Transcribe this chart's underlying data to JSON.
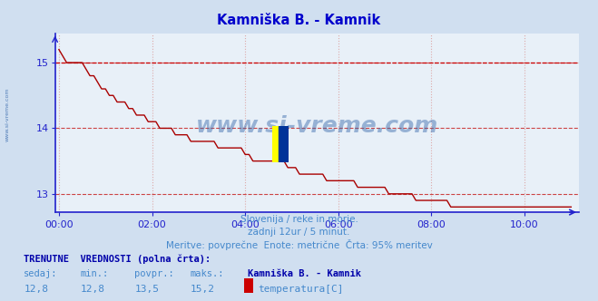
{
  "title": "Kamniška B. - Kamnik",
  "title_color": "#0000cc",
  "bg_color": "#d0dff0",
  "plot_bg_color": "#e8f0f8",
  "grid_h_color": "#cc4444",
  "grid_v_color": "#ddaaaa",
  "axis_color": "#2222cc",
  "line_color": "#aa0000",
  "dashed_line_color": "#cc0000",
  "dashed_line_y": 15.0,
  "x_tick_labels": [
    "00:00",
    "02:00",
    "04:00",
    "06:00",
    "08:00",
    "10:00"
  ],
  "x_tick_positions": [
    0,
    24,
    48,
    72,
    96,
    120
  ],
  "xlim_min": -1,
  "xlim_max": 134,
  "ylim": [
    12.72,
    15.45
  ],
  "y_ticks": [
    13,
    14,
    15
  ],
  "subtitle_line1": "Slovenija / reke in morje.",
  "subtitle_line2": "zadnji 12ur / 5 minut.",
  "subtitle_line3": "Meritve: povprečne  Enote: metrične  Črta: 95% meritev",
  "xlabel_color": "#4488cc",
  "watermark": "www.si-vreme.com",
  "watermark_color": "#3366aa",
  "side_text": "www.si-vreme.com",
  "footer_label1": "TRENUTNE  VREDNOSTI (polna črta):",
  "footer_label2_cols": [
    "sedaj:",
    "min.:",
    "povpr.:",
    "maks.:"
  ],
  "footer_values": [
    "12,8",
    "12,8",
    "13,5",
    "15,2"
  ],
  "footer_series_name": "Kamniška B. - Kamnik",
  "footer_series_label": "temperatura[C]",
  "footer_color": "#4488cc",
  "footer_bold_color": "#0000aa",
  "temp_data": [
    15.2,
    15.1,
    15.0,
    15.0,
    15.0,
    15.0,
    15.0,
    14.9,
    14.8,
    14.8,
    14.7,
    14.6,
    14.6,
    14.5,
    14.5,
    14.4,
    14.4,
    14.4,
    14.3,
    14.3,
    14.2,
    14.2,
    14.2,
    14.1,
    14.1,
    14.1,
    14.0,
    14.0,
    14.0,
    14.0,
    13.9,
    13.9,
    13.9,
    13.9,
    13.8,
    13.8,
    13.8,
    13.8,
    13.8,
    13.8,
    13.8,
    13.7,
    13.7,
    13.7,
    13.7,
    13.7,
    13.7,
    13.7,
    13.6,
    13.6,
    13.5,
    13.5,
    13.5,
    13.5,
    13.5,
    13.5,
    13.5,
    13.5,
    13.5,
    13.4,
    13.4,
    13.4,
    13.3,
    13.3,
    13.3,
    13.3,
    13.3,
    13.3,
    13.3,
    13.2,
    13.2,
    13.2,
    13.2,
    13.2,
    13.2,
    13.2,
    13.2,
    13.1,
    13.1,
    13.1,
    13.1,
    13.1,
    13.1,
    13.1,
    13.1,
    13.0,
    13.0,
    13.0,
    13.0,
    13.0,
    13.0,
    13.0,
    12.9,
    12.9,
    12.9,
    12.9,
    12.9,
    12.9,
    12.9,
    12.9,
    12.9,
    12.8,
    12.8,
    12.8,
    12.8,
    12.8,
    12.8,
    12.8,
    12.8,
    12.8,
    12.8,
    12.8,
    12.8,
    12.8,
    12.8,
    12.8,
    12.8,
    12.8,
    12.8,
    12.8,
    12.8,
    12.8,
    12.8,
    12.8,
    12.8,
    12.8,
    12.8,
    12.8,
    12.8,
    12.8,
    12.8,
    12.8,
    12.8
  ]
}
